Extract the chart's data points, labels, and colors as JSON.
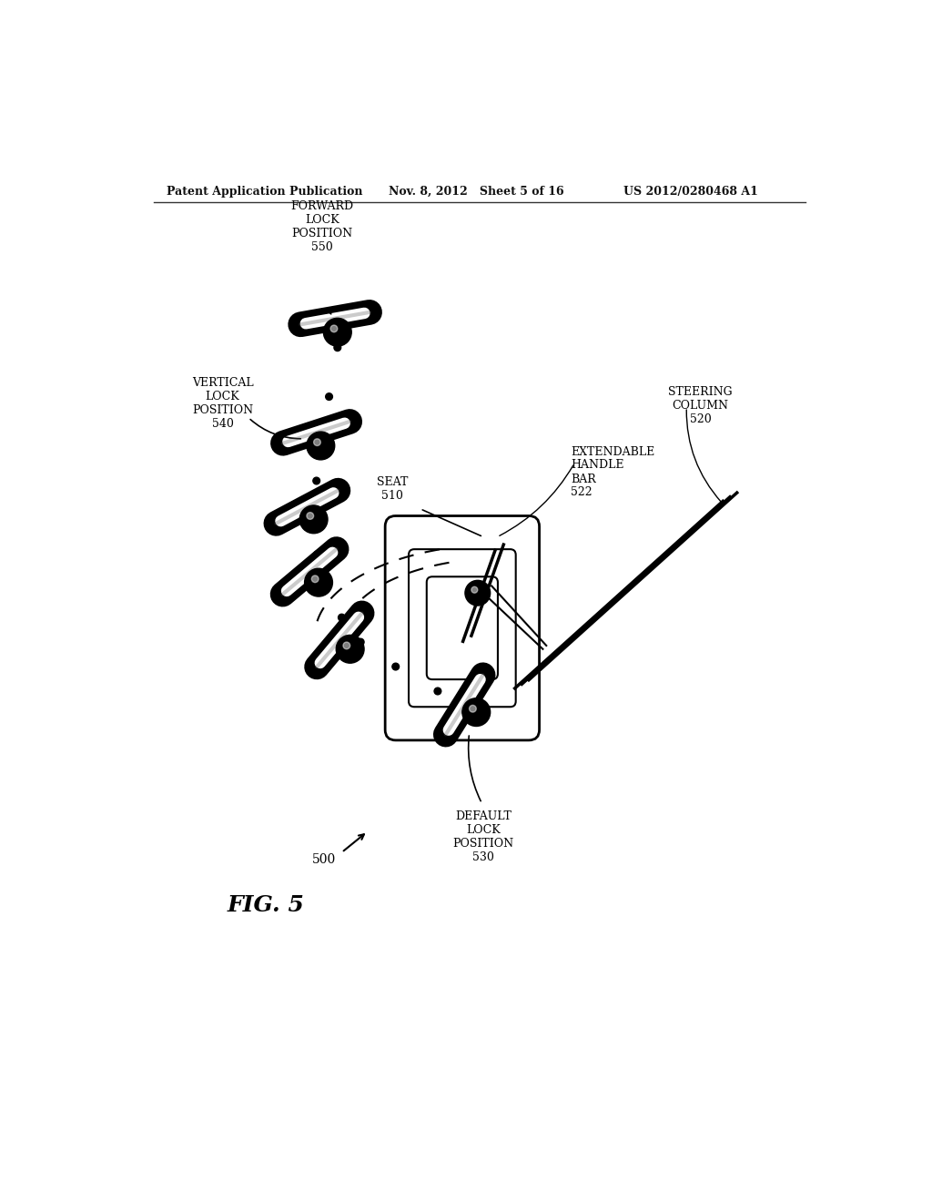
{
  "header_left": "Patent Application Publication",
  "header_mid": "Nov. 8, 2012   Sheet 5 of 16",
  "header_right": "US 2012/0280468 A1",
  "figure_label": "FIG. 5",
  "ref_500": "500",
  "ref_510": "SEAT\n510",
  "ref_520": "STEERING\nCOLUMN\n520",
  "ref_522": "EXTENDABLE\nHANDLE\nBAR\n522",
  "ref_530": "DEFAULT\nLOCK\nPOSITION\n530",
  "ref_540": "VERTICAL\nLOCK\nPOSITION\n540",
  "ref_550": "FORWARD\nLOCK\nPOSITION\n550",
  "bg_color": "#ffffff",
  "line_color": "#000000"
}
